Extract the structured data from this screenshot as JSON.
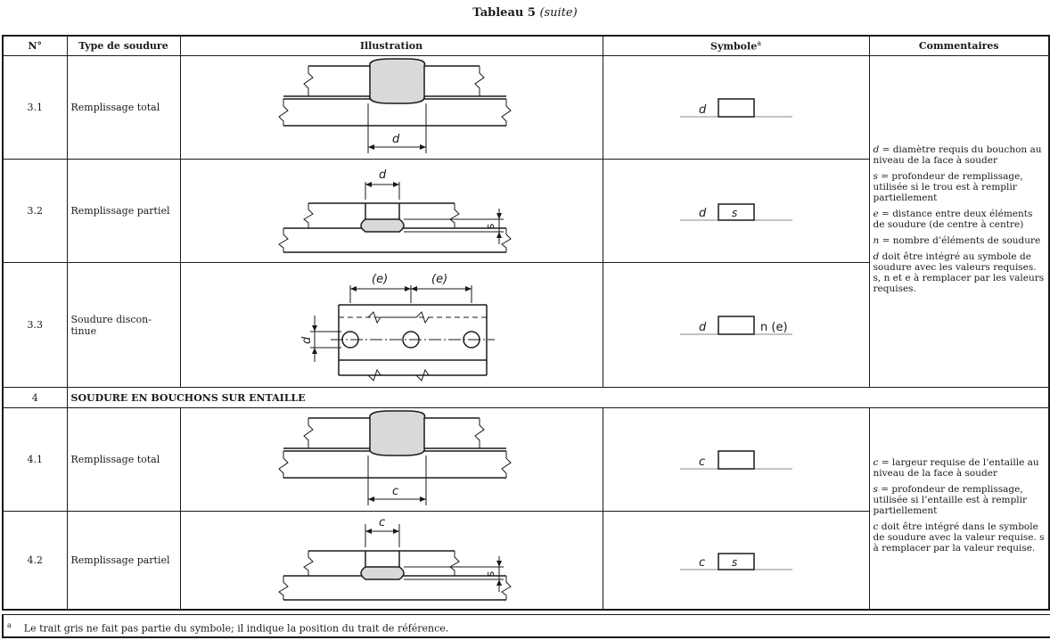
{
  "title": {
    "main": "Tableau 5",
    "suite": "(suite)"
  },
  "headers": {
    "num": "N°",
    "type": "Type de soudure",
    "illus": "Illustration",
    "sym": "Symbole",
    "sym_sup": "a",
    "comm": "Commentaires"
  },
  "rows": [
    {
      "num": "3.1",
      "type": "Remplissage total",
      "dim": "d",
      "sym_left": "d",
      "sym_box": "",
      "sym_right": ""
    },
    {
      "num": "3.2",
      "type": "Remplissage partiel",
      "dim": "d",
      "dim_s": "s",
      "sym_left": "d",
      "sym_box": "s",
      "sym_right": ""
    },
    {
      "num": "3.3",
      "type": "Soudure discon-\ntinue",
      "dim_e1": "(e)",
      "dim_e2": "(e)",
      "dim_d": "d",
      "sym_left": "d",
      "sym_box": "",
      "sym_right": "n (e)"
    },
    {
      "num": "4.1",
      "type": "Remplissage total",
      "dim": "c",
      "sym_left": "c",
      "sym_box": "",
      "sym_right": ""
    },
    {
      "num": "4.2",
      "type": "Remplissage partiel",
      "dim": "c",
      "dim_s": "s",
      "sym_left": "c",
      "sym_box": "s",
      "sym_right": ""
    }
  ],
  "section4": {
    "num": "4",
    "label": "SOUDURE EN BOUCHONS SUR ENTAILLE"
  },
  "comments3": [
    {
      "var": "d",
      "text": " = diamètre requis du bouchon au niveau de la face à souder"
    },
    {
      "var": "s",
      "text": " = profondeur de remplissage, utilisée si le trou est à remplir partiellement"
    },
    {
      "var": "e",
      "text": " = distance entre deux éléments de soudure (de centre à centre)"
    },
    {
      "var": "n",
      "text": " = nombre d’éléments de soudure"
    },
    {
      "var": "d",
      "text": " doit être intégré au symbole de soudure avec les valeurs requises. s, n et e à remplacer par les valeurs requises."
    }
  ],
  "comments4": [
    {
      "var": "c",
      "text": " = largeur requise de l’entaille au niveau de la face à souder"
    },
    {
      "var": "s",
      "text": " = profondeur de remplissage, utilisée si l’entaille est à remplir partiellement"
    },
    {
      "var": "c",
      "text": " doit être intégré dans le symbole de soudure avec la valeur requise. s à remplacer par la valeur requise."
    }
  ],
  "footnote": {
    "mark": "a",
    "text": "Le trait gris ne fait pas partie du symbole; il indique la position du trait de référence."
  }
}
